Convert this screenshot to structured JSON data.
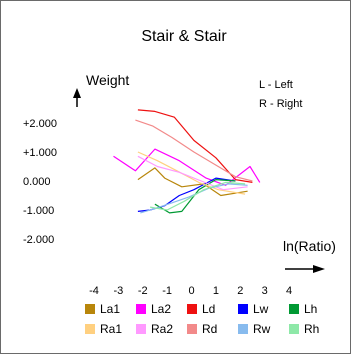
{
  "chart_data": {
    "type": "line",
    "title": "Stair & Stair",
    "ylabel": "Weight",
    "xlabel": "ln(Ratio)",
    "notes": [
      "L - Left",
      "R - Right"
    ],
    "xlim": [
      -4.3,
      4.7
    ],
    "ylim": [
      -2.7,
      2.6
    ],
    "x_ticks": [
      -4,
      -3,
      -2,
      -1,
      0,
      1,
      2,
      3,
      4
    ],
    "x_tick_labels": [
      "-4",
      "-3",
      "-2",
      "-1",
      "0",
      "1",
      "2",
      "3",
      "4"
    ],
    "y_ticks": [
      2,
      1,
      0,
      -1,
      -2
    ],
    "y_tick_labels": [
      "+2.000",
      "+1.000",
      "0.000",
      "-1.000",
      "-2.000"
    ],
    "grid": false,
    "legend_position": "bottom",
    "series": [
      {
        "name": "La1",
        "color": "#b8860b",
        "points": [
          [
            -2.2,
            0.05
          ],
          [
            -1.5,
            0.45
          ],
          [
            -1.1,
            0.1
          ],
          [
            -0.4,
            -0.2
          ],
          [
            0.5,
            -0.1
          ],
          [
            1.2,
            -0.5
          ],
          [
            2.3,
            -0.35
          ]
        ]
      },
      {
        "name": "La2",
        "color": "#ff00ff",
        "points": [
          [
            -3.2,
            0.85
          ],
          [
            -2.3,
            0.35
          ],
          [
            -1.5,
            1.1
          ],
          [
            -0.5,
            0.7
          ],
          [
            0.6,
            0.1
          ],
          [
            1.4,
            -0.15
          ],
          [
            2.4,
            0.5
          ],
          [
            2.8,
            -0.05
          ]
        ]
      },
      {
        "name": "Ld",
        "color": "#ee1111",
        "points": [
          [
            -2.2,
            2.45
          ],
          [
            -1.5,
            2.4
          ],
          [
            -0.7,
            2.2
          ],
          [
            0.1,
            1.4
          ],
          [
            1.0,
            0.8
          ],
          [
            1.8,
            0.05
          ],
          [
            2.5,
            -0.05
          ]
        ]
      },
      {
        "name": "Lw",
        "color": "#0000ff",
        "points": [
          [
            -2.2,
            -1.05
          ],
          [
            -1.7,
            -1.0
          ],
          [
            -1.1,
            -0.85
          ],
          [
            -0.5,
            -0.5
          ],
          [
            0.1,
            -0.3
          ],
          [
            1.0,
            0.1
          ],
          [
            1.8,
            0.0
          ]
        ]
      },
      {
        "name": "Lh",
        "color": "#009933",
        "points": [
          [
            -1.5,
            -0.8
          ],
          [
            -0.9,
            -1.1
          ],
          [
            -0.4,
            -1.05
          ],
          [
            0.3,
            -0.3
          ],
          [
            1.0,
            0.05
          ],
          [
            1.8,
            0.0
          ]
        ]
      },
      {
        "name": "Ra1",
        "color": "#ffd080",
        "points": [
          [
            -2.2,
            1.0
          ],
          [
            -1.4,
            0.7
          ],
          [
            -0.6,
            0.35
          ],
          [
            0.3,
            -0.05
          ],
          [
            1.1,
            -0.3
          ],
          [
            2.2,
            -0.45
          ]
        ]
      },
      {
        "name": "Ra2",
        "color": "#ff99ff",
        "points": [
          [
            -2.2,
            0.85
          ],
          [
            -1.4,
            0.5
          ],
          [
            -0.5,
            0.3
          ],
          [
            0.4,
            0.0
          ],
          [
            1.3,
            -0.3
          ],
          [
            2.3,
            -0.2
          ]
        ]
      },
      {
        "name": "Rd",
        "color": "#f28a8a",
        "points": [
          [
            -2.3,
            2.1
          ],
          [
            -1.6,
            1.9
          ],
          [
            -0.8,
            1.5
          ],
          [
            0.1,
            1.0
          ],
          [
            0.9,
            0.6
          ],
          [
            1.8,
            0.15
          ],
          [
            2.5,
            0.0
          ]
        ]
      },
      {
        "name": "Rw",
        "color": "#88bbee",
        "points": [
          [
            -2.1,
            -1.1
          ],
          [
            -1.5,
            -0.95
          ],
          [
            -0.8,
            -0.75
          ],
          [
            -0.1,
            -0.55
          ],
          [
            0.7,
            -0.25
          ],
          [
            1.5,
            -0.1
          ],
          [
            2.3,
            -0.15
          ]
        ]
      },
      {
        "name": "Rh",
        "color": "#8ee8a8",
        "points": [
          [
            -1.7,
            -0.9
          ],
          [
            -1.0,
            -1.0
          ],
          [
            -0.3,
            -0.7
          ],
          [
            0.5,
            -0.3
          ],
          [
            1.4,
            -0.05
          ],
          [
            2.2,
            -0.1
          ]
        ]
      }
    ]
  }
}
